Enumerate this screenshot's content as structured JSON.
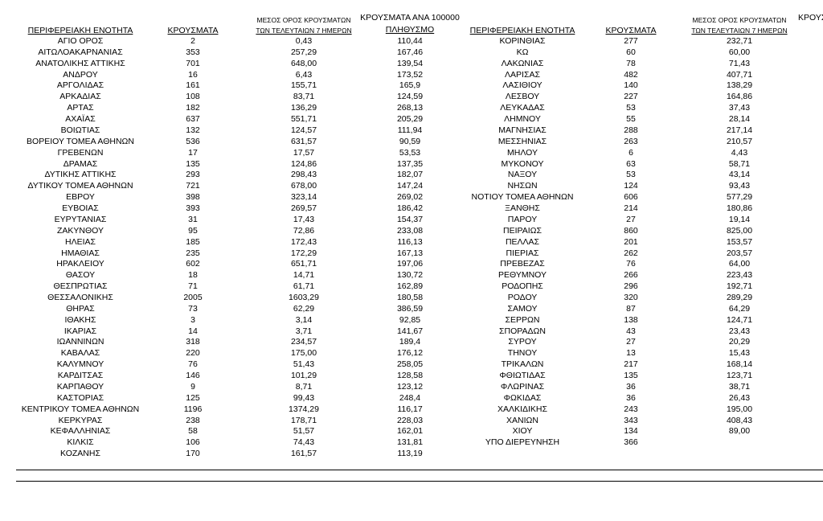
{
  "tables": [
    {
      "headers": [
        [
          "ΠΕΡΙΦΕΡΕΙΑΚΗ ΕΝΟΤΗΤΑ"
        ],
        [
          "ΚΡΟΥΣΜΑΤΑ"
        ],
        [
          "ΜΕΣΟΣ ΟΡΟΣ ΚΡΟΥΣΜΑΤΩΝ",
          "ΤΩΝ ΤΕΛΕΥΤΑΙΩΝ 7 ΗΜΕΡΩΝ"
        ],
        [
          "ΚΡΟΥΣΜΑΤΑ ΑΝΑ 100000",
          "ΠΛΗΘΥΣΜΟ"
        ]
      ],
      "rows": [
        [
          "ΑΓΙΟ ΟΡΟΣ",
          "2",
          "0,43",
          "110,44"
        ],
        [
          "ΑΙΤΩΛΟΑΚΑΡΝΑΝΙΑΣ",
          "353",
          "257,29",
          "167,46"
        ],
        [
          "ΑΝΑΤΟΛΙΚΗΣ ΑΤΤΙΚΗΣ",
          "701",
          "648,00",
          "139,54"
        ],
        [
          "ΑΝΔΡΟΥ",
          "16",
          "6,43",
          "173,52"
        ],
        [
          "ΑΡΓΟΛΙΔΑΣ",
          "161",
          "155,71",
          "165,9"
        ],
        [
          "ΑΡΚΑΔΙΑΣ",
          "108",
          "83,71",
          "124,59"
        ],
        [
          "ΑΡΤΑΣ",
          "182",
          "136,29",
          "268,13"
        ],
        [
          "ΑΧΑΪΑΣ",
          "637",
          "551,71",
          "205,29"
        ],
        [
          "ΒΟΙΩΤΙΑΣ",
          "132",
          "124,57",
          "111,94"
        ],
        [
          "ΒΟΡΕΙΟΥ ΤΟΜΕΑ ΑΘΗΝΩΝ",
          "536",
          "631,57",
          "90,59"
        ],
        [
          "ΓΡΕΒΕΝΩΝ",
          "17",
          "17,57",
          "53,53"
        ],
        [
          "ΔΡΑΜΑΣ",
          "135",
          "124,86",
          "137,35"
        ],
        [
          "ΔΥΤΙΚΗΣ ΑΤΤΙΚΗΣ",
          "293",
          "298,43",
          "182,07"
        ],
        [
          "ΔΥΤΙΚΟΥ ΤΟΜΕΑ ΑΘΗΝΩΝ",
          "721",
          "678,00",
          "147,24"
        ],
        [
          "ΕΒΡΟΥ",
          "398",
          "323,14",
          "269,02"
        ],
        [
          "ΕΥΒΟΙΑΣ",
          "393",
          "269,57",
          "186,42"
        ],
        [
          "ΕΥΡΥΤΑΝΙΑΣ",
          "31",
          "17,43",
          "154,37"
        ],
        [
          "ΖΑΚΥΝΘΟΥ",
          "95",
          "72,86",
          "233,08"
        ],
        [
          "ΗΛΕΙΑΣ",
          "185",
          "172,43",
          "116,13"
        ],
        [
          "ΗΜΑΘΙΑΣ",
          "235",
          "172,29",
          "167,13"
        ],
        [
          "ΗΡΑΚΛΕΙΟΥ",
          "602",
          "651,71",
          "197,06"
        ],
        [
          "ΘΑΣΟΥ",
          "18",
          "14,71",
          "130,72"
        ],
        [
          "ΘΕΣΠΡΩΤΙΑΣ",
          "71",
          "61,71",
          "162,89"
        ],
        [
          "ΘΕΣΣΑΛΟΝΙΚΗΣ",
          "2005",
          "1603,29",
          "180,58"
        ],
        [
          "ΘΗΡΑΣ",
          "73",
          "62,29",
          "386,59"
        ],
        [
          "ΙΘΑΚΗΣ",
          "3",
          "3,14",
          "92,85"
        ],
        [
          "ΙΚΑΡΙΑΣ",
          "14",
          "3,71",
          "141,67"
        ],
        [
          "ΙΩΑΝΝΙΝΩΝ",
          "318",
          "234,57",
          "189,4"
        ],
        [
          "ΚΑΒΑΛΑΣ",
          "220",
          "175,00",
          "176,12"
        ],
        [
          "ΚΑΛΥΜΝΟΥ",
          "76",
          "51,43",
          "258,05"
        ],
        [
          "ΚΑΡΔΙΤΣΑΣ",
          "146",
          "101,29",
          "128,58"
        ],
        [
          "ΚΑΡΠΑΘΟΥ",
          "9",
          "8,71",
          "123,12"
        ],
        [
          "ΚΑΣΤΟΡΙΑΣ",
          "125",
          "99,43",
          "248,4"
        ],
        [
          "ΚΕΝΤΡΙΚΟΥ ΤΟΜΕΑ ΑΘΗΝΩΝ",
          "1196",
          "1374,29",
          "116,17"
        ],
        [
          "ΚΕΡΚΥΡΑΣ",
          "238",
          "178,71",
          "228,03"
        ],
        [
          "ΚΕΦΑΛΛΗΝΙΑΣ",
          "58",
          "51,57",
          "162,01"
        ],
        [
          "ΚΙΛΚΙΣ",
          "106",
          "74,43",
          "131,81"
        ],
        [
          "ΚΟΖΑΝΗΣ",
          "170",
          "161,57",
          "113,19"
        ]
      ]
    },
    {
      "headers": [
        [
          "ΠΕΡΙΦΕΡΕΙΑΚΗ ΕΝΟΤΗΤΑ"
        ],
        [
          "ΚΡΟΥΣΜΑΤΑ"
        ],
        [
          "ΜΕΣΟΣ ΟΡΟΣ ΚΡΟΥΣΜΑΤΩΝ",
          "ΤΩΝ ΤΕΛΕΥΤΑΙΩΝ 7 ΗΜΕΡΩΝ"
        ],
        [
          "ΚΡΟΥΣ"
        ]
      ],
      "rows": [
        [
          "ΚΟΡΙΝΘΙΑΣ",
          "277",
          "232,71"
        ],
        [
          "ΚΩ",
          "60",
          "60,00"
        ],
        [
          "ΛΑΚΩΝΙΑΣ",
          "78",
          "71,43"
        ],
        [
          "ΛΑΡΙΣΑΣ",
          "482",
          "407,71"
        ],
        [
          "ΛΑΣΙΘΙΟΥ",
          "140",
          "138,29"
        ],
        [
          "ΛΕΣΒΟΥ",
          "227",
          "164,86"
        ],
        [
          "ΛΕΥΚΑΔΑΣ",
          "53",
          "37,43"
        ],
        [
          "ΛΗΜΝΟΥ",
          "55",
          "28,14"
        ],
        [
          "ΜΑΓΝΗΣΙΑΣ",
          "288",
          "217,14"
        ],
        [
          "ΜΕΣΣΗΝΙΑΣ",
          "263",
          "210,57"
        ],
        [
          "ΜΗΛΟΥ",
          "6",
          "4,43"
        ],
        [
          "ΜΥΚΟΝΟΥ",
          "63",
          "58,71"
        ],
        [
          "ΝΑΞΟΥ",
          "53",
          "43,14"
        ],
        [
          "ΝΗΣΩΝ",
          "124",
          "93,43"
        ],
        [
          "ΝΟΤΙΟΥ ΤΟΜΕΑ ΑΘΗΝΩΝ",
          "606",
          "577,29"
        ],
        [
          "ΞΑΝΘΗΣ",
          "214",
          "180,86"
        ],
        [
          "ΠΑΡΟΥ",
          "27",
          "19,14"
        ],
        [
          "ΠΕΙΡΑΙΩΣ",
          "860",
          "825,00"
        ],
        [
          "ΠΕΛΛΑΣ",
          "201",
          "153,57"
        ],
        [
          "ΠΙΕΡΙΑΣ",
          "262",
          "203,57"
        ],
        [
          "ΠΡΕΒΕΖΑΣ",
          "76",
          "64,00"
        ],
        [
          "ΡΕΘΥΜΝΟΥ",
          "266",
          "223,43"
        ],
        [
          "ΡΟΔΟΠΗΣ",
          "296",
          "192,71"
        ],
        [
          "ΡΟΔΟΥ",
          "320",
          "289,29"
        ],
        [
          "ΣΑΜΟΥ",
          "87",
          "64,29"
        ],
        [
          "ΣΕΡΡΩΝ",
          "138",
          "124,71"
        ],
        [
          "ΣΠΟΡΑΔΩΝ",
          "43",
          "23,43"
        ],
        [
          "ΣΥΡΟΥ",
          "27",
          "20,29"
        ],
        [
          "ΤΗΝΟΥ",
          "13",
          "15,43"
        ],
        [
          "ΤΡΙΚΑΛΩΝ",
          "217",
          "168,14"
        ],
        [
          "ΦΘΙΩΤΙΔΑΣ",
          "135",
          "123,71"
        ],
        [
          "ΦΛΩΡΙΝΑΣ",
          "36",
          "38,71"
        ],
        [
          "ΦΩΚΙΔΑΣ",
          "36",
          "26,43"
        ],
        [
          "ΧΑΛΚΙΔΙΚΗΣ",
          "243",
          "195,00"
        ],
        [
          "ΧΑΝΙΩΝ",
          "343",
          "408,43"
        ],
        [
          "ΧΙΟΥ",
          "134",
          "89,00"
        ],
        [
          "ΥΠΟ ΔΙΕΡΕΥΝΗΣΗ",
          "366"
        ]
      ]
    }
  ]
}
